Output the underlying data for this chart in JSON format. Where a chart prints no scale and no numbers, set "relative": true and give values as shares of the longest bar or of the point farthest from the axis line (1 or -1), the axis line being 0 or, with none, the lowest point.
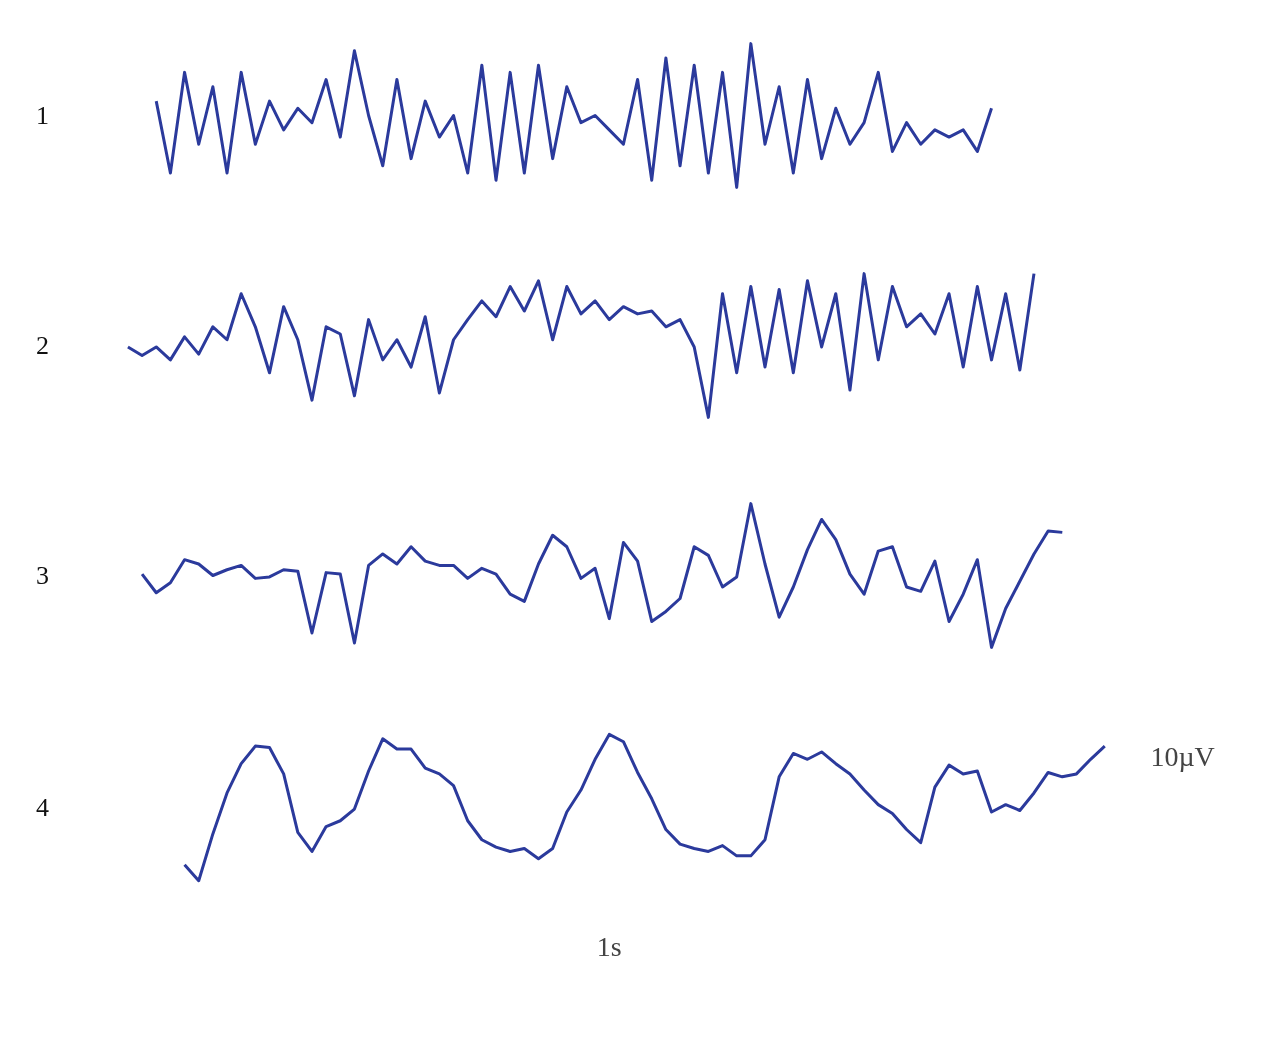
{
  "chart_data": [
    {
      "type": "line",
      "title": "1",
      "relative": true,
      "categories": [
        null,
        null,
        null,
        null,
        null,
        null,
        null,
        null,
        null,
        null,
        null,
        null,
        null,
        null,
        null,
        null,
        null,
        null,
        null,
        null,
        null,
        null,
        null,
        null,
        null,
        null,
        null,
        null,
        null,
        null,
        null,
        null,
        null,
        null,
        null,
        null,
        null,
        null,
        null,
        null,
        null,
        null,
        null,
        null,
        null,
        null,
        null,
        null,
        null,
        null,
        null,
        null,
        null,
        null,
        null,
        null,
        null,
        null,
        null,
        null,
        null,
        null,
        null,
        null,
        null,
        null,
        null,
        null,
        null,
        null,
        null
      ],
      "series": [
        {
          "color": "#2b3a9c",
          "values": [
            null,
            null,
            null,
            0.6,
            0.1,
            0.8,
            0.3,
            0.7,
            0.1,
            0.8,
            0.3,
            0.6,
            0.4,
            0.55,
            0.45,
            0.75,
            0.35,
            0.95,
            0.5,
            0.15,
            0.75,
            0.2,
            0.6,
            0.35,
            0.5,
            0.1,
            0.85,
            0.05,
            0.8,
            0.1,
            0.85,
            0.2,
            0.7,
            0.45,
            0.5,
            0.4,
            0.3,
            0.75,
            0.05,
            0.9,
            0.15,
            0.85,
            0.1,
            0.8,
            0.0,
            1.0,
            0.3,
            0.7,
            0.1,
            0.75,
            0.2,
            0.55,
            0.3,
            0.45,
            0.8,
            0.25,
            0.45,
            0.3,
            0.4,
            0.35,
            0.4,
            0.25,
            0.55,
            null,
            null,
            null,
            null,
            null,
            null,
            null,
            null
          ]
        }
      ]
    },
    {
      "type": "line",
      "title": "2",
      "relative": true,
      "categories": [
        null,
        null,
        null,
        null,
        null,
        null,
        null,
        null,
        null,
        null,
        null,
        null,
        null,
        null,
        null,
        null,
        null,
        null,
        null,
        null,
        null,
        null,
        null,
        null,
        null,
        null,
        null,
        null,
        null,
        null,
        null,
        null,
        null,
        null,
        null,
        null,
        null,
        null,
        null,
        null,
        null,
        null,
        null,
        null,
        null,
        null,
        null,
        null,
        null,
        null,
        null,
        null,
        null,
        null,
        null,
        null,
        null,
        null,
        null,
        null,
        null,
        null,
        null,
        null,
        null,
        null,
        null,
        null,
        null,
        null,
        null
      ],
      "series": [
        {
          "color": "#2b3a9c",
          "values": [
            null,
            0.49,
            0.43,
            0.49,
            0.4,
            0.56,
            0.44,
            0.63,
            0.54,
            0.86,
            0.63,
            0.31,
            0.77,
            0.54,
            0.12,
            0.63,
            0.58,
            0.15,
            0.68,
            0.4,
            0.54,
            0.35,
            0.7,
            0.17,
            0.54,
            0.68,
            0.81,
            0.7,
            0.91,
            0.74,
            0.95,
            0.54,
            0.91,
            0.72,
            0.81,
            0.68,
            0.77,
            0.72,
            0.74,
            0.63,
            0.68,
            0.49,
            0.0,
            0.86,
            0.31,
            0.91,
            0.35,
            0.89,
            0.31,
            0.95,
            0.49,
            0.86,
            0.19,
            1.0,
            0.4,
            0.91,
            0.63,
            0.72,
            0.58,
            0.86,
            0.35,
            0.91,
            0.4,
            0.86,
            0.33,
            1.0,
            null,
            null,
            null,
            null,
            null
          ]
        }
      ]
    },
    {
      "type": "line",
      "title": "3",
      "relative": true,
      "categories": [
        null,
        null,
        null,
        null,
        null,
        null,
        null,
        null,
        null,
        null,
        null,
        null,
        null,
        null,
        null,
        null,
        null,
        null,
        null,
        null,
        null,
        null,
        null,
        null,
        null,
        null,
        null,
        null,
        null,
        null,
        null,
        null,
        null,
        null,
        null,
        null,
        null,
        null,
        null,
        null,
        null,
        null,
        null,
        null,
        null,
        null,
        null,
        null,
        null,
        null,
        null,
        null,
        null,
        null,
        null,
        null,
        null,
        null,
        null,
        null,
        null,
        null,
        null,
        null,
        null,
        null,
        null,
        null,
        null,
        null,
        null
      ],
      "series": [
        {
          "color": "#2b3a9c",
          "values": [
            null,
            null,
            0.51,
            0.38,
            0.45,
            0.61,
            0.58,
            0.5,
            0.54,
            0.57,
            0.48,
            0.49,
            0.54,
            0.53,
            0.1,
            0.52,
            0.51,
            0.03,
            0.57,
            0.65,
            0.58,
            0.7,
            0.6,
            0.57,
            0.57,
            0.48,
            0.55,
            0.51,
            0.37,
            0.32,
            0.58,
            0.78,
            0.7,
            0.48,
            0.55,
            0.2,
            0.73,
            0.6,
            0.18,
            0.25,
            0.34,
            0.7,
            0.64,
            0.42,
            0.49,
            1.0,
            0.58,
            0.21,
            0.42,
            0.68,
            0.89,
            0.75,
            0.51,
            0.37,
            0.67,
            0.7,
            0.42,
            0.39,
            0.6,
            0.18,
            0.37,
            0.61,
            0.0,
            0.27,
            0.46,
            0.65,
            0.81,
            0.8,
            null,
            null,
            null
          ]
        }
      ]
    },
    {
      "type": "line",
      "title": "4",
      "relative": true,
      "categories": [
        null,
        null,
        null,
        null,
        null,
        null,
        null,
        null,
        null,
        null,
        null,
        null,
        null,
        null,
        null,
        null,
        null,
        null,
        null,
        null,
        null,
        null,
        null,
        null,
        null,
        null,
        null,
        null,
        null,
        null,
        null,
        null,
        null,
        null,
        null,
        null,
        null,
        null,
        null,
        null,
        null,
        null,
        null,
        null,
        null,
        null,
        null,
        null,
        null,
        null,
        null,
        null,
        null,
        null,
        null,
        null,
        null,
        null,
        null,
        null,
        null,
        null,
        null,
        null,
        null,
        null,
        null,
        null,
        null,
        null,
        null
      ],
      "annotations": [
        "10µV",
        "1s"
      ],
      "series": [
        {
          "color": "#2b3a9c",
          "values": [
            null,
            null,
            null,
            null,
            null,
            0.11,
            0.0,
            0.32,
            0.6,
            0.8,
            0.92,
            0.91,
            0.73,
            0.33,
            0.2,
            0.37,
            0.41,
            0.49,
            0.75,
            0.97,
            0.9,
            0.9,
            0.77,
            0.73,
            0.65,
            0.41,
            0.28,
            0.23,
            0.2,
            0.22,
            0.15,
            0.22,
            0.47,
            0.62,
            0.83,
            1.0,
            0.95,
            0.74,
            0.56,
            0.35,
            0.25,
            0.22,
            0.2,
            0.24,
            0.17,
            0.17,
            0.28,
            0.71,
            0.87,
            0.83,
            0.88,
            0.8,
            0.73,
            0.62,
            0.52,
            0.46,
            0.35,
            0.26,
            0.64,
            0.79,
            0.73,
            0.75,
            0.47,
            0.52,
            0.48,
            0.6,
            0.74,
            0.71,
            0.73,
            0.83,
            0.92
          ]
        }
      ]
    }
  ]
}
